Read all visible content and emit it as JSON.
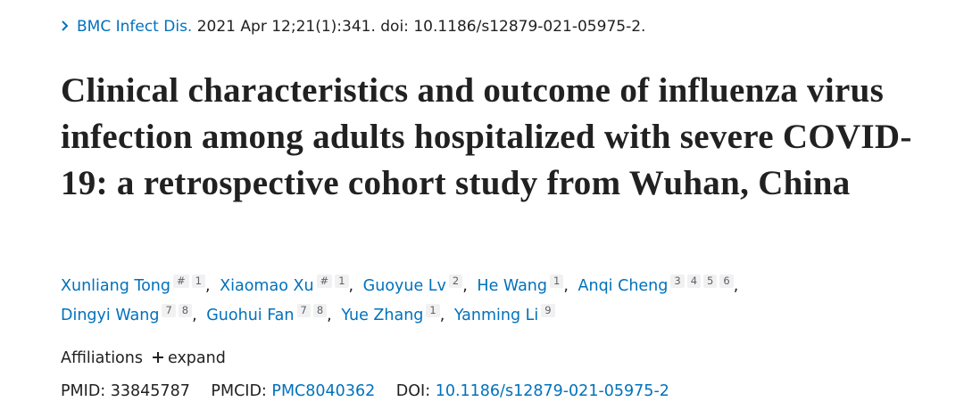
{
  "journal": {
    "name": "BMC Infect Dis.",
    "citation": "2021 Apr 12;21(1):341. doi: 10.1186/s12879-021-05975-2."
  },
  "title": "Clinical characteristics and outcome of influenza virus infection among adults hospitalized with severe COVID-19: a retrospective cohort study from Wuhan, China",
  "author_separator": ",",
  "authors": [
    {
      "name": "Xunliang Tong",
      "marks": [
        "#",
        "1"
      ]
    },
    {
      "name": "Xiaomao Xu",
      "marks": [
        "#",
        "1"
      ]
    },
    {
      "name": "Guoyue Lv",
      "marks": [
        "2"
      ]
    },
    {
      "name": "He Wang",
      "marks": [
        "1"
      ]
    },
    {
      "name": "Anqi Cheng",
      "marks": [
        "3",
        "4",
        "5",
        "6"
      ]
    },
    {
      "name": "Dingyi Wang",
      "marks": [
        "7",
        "8"
      ]
    },
    {
      "name": "Guohui Fan",
      "marks": [
        "7",
        "8"
      ]
    },
    {
      "name": "Yue Zhang",
      "marks": [
        "1"
      ]
    },
    {
      "name": "Yanming Li",
      "marks": [
        "9"
      ]
    }
  ],
  "affiliations": {
    "label": "Affiliations",
    "toggle": "expand"
  },
  "ids": {
    "pmid_label": "PMID:",
    "pmid": "33845787",
    "pmcid_label": "PMCID:",
    "pmcid": "PMC8040362",
    "doi_label": "DOI:",
    "doi": "10.1186/s12879-021-05975-2"
  }
}
